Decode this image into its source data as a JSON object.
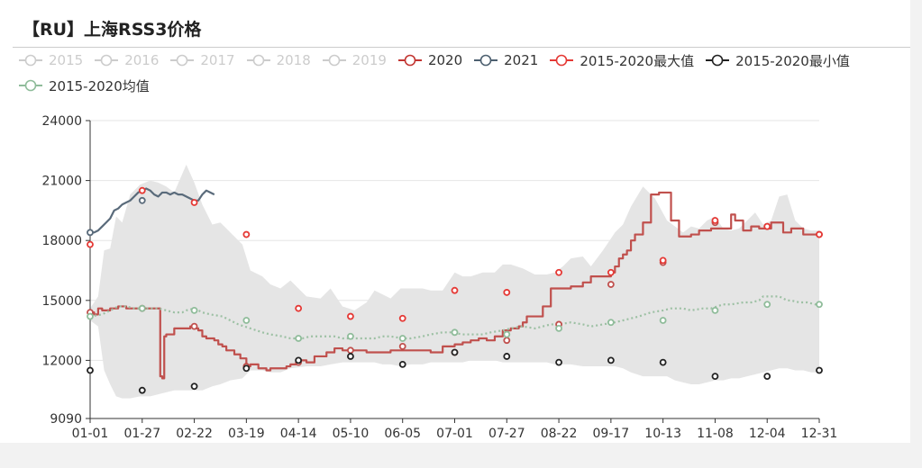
{
  "title": "【RU】上海RSS3价格",
  "legend": [
    {
      "label": "2015",
      "color": "#cccccc",
      "active": false
    },
    {
      "label": "2016",
      "color": "#cccccc",
      "active": false
    },
    {
      "label": "2017",
      "color": "#cccccc",
      "active": false
    },
    {
      "label": "2018",
      "color": "#cccccc",
      "active": false
    },
    {
      "label": "2019",
      "color": "#cccccc",
      "active": false
    },
    {
      "label": "2020",
      "color": "#c23531",
      "active": true
    },
    {
      "label": "2021",
      "color": "#4d6070",
      "active": true
    },
    {
      "label": "2015-2020最大值",
      "color": "#e53935",
      "active": true
    },
    {
      "label": "2015-2020最小值",
      "color": "#222222",
      "active": true
    },
    {
      "label": "2015-2020均值",
      "color": "#8fbc9a",
      "active": true
    }
  ],
  "chart_data": {
    "type": "line",
    "x_ticks": [
      "01-01",
      "01-27",
      "02-22",
      "03-19",
      "04-14",
      "05-10",
      "06-05",
      "07-01",
      "07-27",
      "08-22",
      "09-17",
      "10-13",
      "11-08",
      "12-04",
      "12-31"
    ],
    "y_ticks": [
      9090,
      12000,
      15000,
      18000,
      21000,
      24000
    ],
    "ylim": [
      9090,
      24000
    ],
    "grid": true,
    "legend_position": "top",
    "band_color": "#e5e5e5",
    "band": {
      "x": [
        0,
        4,
        7,
        10,
        13,
        16,
        20,
        25,
        30,
        34,
        38,
        42,
        48,
        52,
        56,
        61,
        65,
        70,
        76,
        80,
        86,
        90,
        95,
        100,
        108,
        115,
        120,
        126,
        132,
        138,
        142,
        146,
        150,
        155,
        160,
        166,
        170,
        176,
        182,
        186,
        190,
        196,
        202,
        206,
        210,
        216,
        222,
        228,
        232,
        236,
        240,
        246,
        250,
        256,
        262,
        266,
        270,
        276,
        282,
        288,
        292,
        296,
        300,
        304,
        308,
        312,
        316,
        320,
        324,
        328,
        332,
        336,
        340,
        344,
        348,
        352,
        356,
        360,
        364
      ],
      "upper": [
        14600,
        15200,
        17500,
        17600,
        19200,
        18900,
        20300,
        20800,
        21000,
        20900,
        20700,
        20400,
        21800,
        20900,
        19800,
        18800,
        18900,
        18400,
        17800,
        16500,
        16200,
        15800,
        15600,
        16000,
        15200,
        15100,
        15600,
        14700,
        14500,
        14900,
        15500,
        15300,
        15100,
        15600,
        15600,
        15600,
        15500,
        15500,
        16400,
        16200,
        16200,
        16400,
        16400,
        16800,
        16800,
        16600,
        16300,
        16300,
        16400,
        16700,
        17100,
        17200,
        16700,
        17500,
        18400,
        18800,
        19700,
        20700,
        20100,
        19000,
        18700,
        18400,
        18700,
        18600,
        19000,
        19200,
        18600,
        18500,
        18600,
        19000,
        19400,
        18800,
        19000,
        20200,
        20300,
        19000,
        18600,
        18500,
        18500
      ],
      "lower": [
        14000,
        13700,
        11500,
        10800,
        10200,
        10100,
        10100,
        10200,
        10200,
        10300,
        10400,
        10500,
        10500,
        10500,
        10500,
        10700,
        10800,
        11000,
        11100,
        11500,
        11500,
        11400,
        11400,
        11600,
        11700,
        11700,
        11800,
        11900,
        11900,
        11900,
        11900,
        11800,
        11800,
        11700,
        11800,
        11800,
        11900,
        11900,
        11900,
        11900,
        12000,
        12000,
        12000,
        11900,
        11900,
        11900,
        11900,
        11900,
        11800,
        11800,
        11800,
        11700,
        11700,
        11700,
        11700,
        11600,
        11400,
        11200,
        11200,
        11200,
        11000,
        10900,
        10800,
        10800,
        10900,
        11000,
        11000,
        11100,
        11100,
        11200,
        11300,
        11400,
        11500,
        11600,
        11600,
        11500,
        11500,
        11400,
        11400
      ]
    },
    "series": [
      {
        "name": "2020",
        "color": "#c0504d",
        "x": [
          0,
          2,
          4,
          6,
          10,
          14,
          18,
          20,
          24,
          28,
          32,
          34,
          35,
          36,
          37,
          38,
          42,
          46,
          50,
          52,
          54,
          56,
          58,
          62,
          64,
          66,
          68,
          72,
          75,
          78,
          80,
          84,
          88,
          90,
          94,
          98,
          100,
          104,
          108,
          112,
          118,
          122,
          126,
          130,
          134,
          138,
          144,
          150,
          156,
          160,
          166,
          170,
          176,
          182,
          186,
          190,
          194,
          198,
          202,
          206,
          210,
          214,
          216,
          218,
          226,
          230,
          234,
          240,
          246,
          250,
          254,
          258,
          260,
          262,
          264,
          266,
          268,
          270,
          272,
          276,
          280,
          284,
          290,
          294,
          300,
          304,
          310,
          314,
          320,
          322,
          326,
          330,
          334,
          336,
          340,
          346,
          350,
          354,
          356,
          360,
          364
        ],
        "y": [
          14400,
          14300,
          14600,
          14500,
          14600,
          14700,
          14600,
          14600,
          14600,
          14600,
          14600,
          14600,
          11200,
          11100,
          13200,
          13300,
          13600,
          13600,
          13700,
          13600,
          13500,
          13200,
          13100,
          13000,
          12800,
          12700,
          12500,
          12300,
          12100,
          11700,
          11800,
          11600,
          11500,
          11600,
          11600,
          11700,
          11800,
          12000,
          11900,
          12200,
          12400,
          12600,
          12500,
          12500,
          12500,
          12400,
          12400,
          12500,
          12500,
          12500,
          12500,
          12400,
          12700,
          12800,
          12900,
          13000,
          13100,
          13000,
          13200,
          13500,
          13600,
          13700,
          13900,
          14200,
          14700,
          15600,
          15600,
          15700,
          15900,
          16200,
          16200,
          16200,
          16400,
          16700,
          17100,
          17300,
          17500,
          18000,
          18300,
          18900,
          20300,
          20400,
          19000,
          18200,
          18300,
          18500,
          18600,
          18600,
          19300,
          19000,
          18500,
          18700,
          18600,
          18600,
          18900,
          18400,
          18600,
          18600,
          18300,
          18300,
          18300
        ]
      },
      {
        "name": "2021",
        "color": "#5a6b7b",
        "x": [
          0,
          2,
          4,
          6,
          8,
          10,
          12,
          14,
          16,
          18,
          20,
          22,
          24,
          26,
          28,
          30,
          32,
          34,
          36,
          38,
          40,
          42,
          44,
          46,
          48,
          50,
          52,
          54,
          56,
          58,
          60,
          62
        ],
        "y": [
          18400,
          18400,
          18500,
          18700,
          18900,
          19100,
          19500,
          19600,
          19800,
          19900,
          20000,
          20200,
          20400,
          20500,
          20600,
          20500,
          20300,
          20200,
          20400,
          20400,
          20300,
          20400,
          20300,
          20300,
          20200,
          20100,
          20000,
          20000,
          20300,
          20500,
          20400,
          20300
        ]
      },
      {
        "name": "2015-2020均值",
        "color": "#9cc0a3",
        "dashed": true,
        "x": [
          0,
          6,
          10,
          14,
          18,
          22,
          26,
          30,
          34,
          38,
          42,
          46,
          48,
          52,
          56,
          60,
          66,
          70,
          74,
          80,
          86,
          90,
          96,
          100,
          106,
          110,
          114,
          118,
          122,
          126,
          130,
          134,
          138,
          142,
          146,
          150,
          156,
          160,
          166,
          170,
          176,
          180,
          186,
          190,
          196,
          200,
          206,
          210,
          216,
          222,
          226,
          230,
          234,
          240,
          246,
          250,
          256,
          262,
          266,
          270,
          274,
          280,
          286,
          290,
          296,
          300,
          306,
          310,
          316,
          320,
          326,
          330,
          334,
          336,
          340,
          344,
          348,
          350,
          354,
          358,
          362,
          364
        ],
        "y": [
          14200,
          14300,
          14500,
          14700,
          14700,
          14600,
          14600,
          14600,
          14600,
          14500,
          14400,
          14400,
          14500,
          14600,
          14400,
          14300,
          14200,
          14000,
          13800,
          13600,
          13400,
          13300,
          13200,
          13100,
          13100,
          13200,
          13200,
          13200,
          13200,
          13100,
          13100,
          13100,
          13100,
          13100,
          13200,
          13200,
          13100,
          13100,
          13200,
          13300,
          13400,
          13400,
          13300,
          13300,
          13300,
          13400,
          13500,
          13600,
          13700,
          13600,
          13700,
          13800,
          13800,
          13900,
          13800,
          13700,
          13800,
          13900,
          14000,
          14100,
          14200,
          14400,
          14500,
          14600,
          14600,
          14500,
          14600,
          14600,
          14800,
          14800,
          14900,
          14900,
          15000,
          15200,
          15200,
          15200,
          15000,
          15000,
          14900,
          14900,
          14800,
          14800
        ]
      }
    ],
    "markers": {
      "max": {
        "color": "#e53935",
        "x": [
          0,
          26,
          52,
          78,
          104,
          130,
          156,
          182,
          208,
          234,
          260,
          286,
          312,
          338,
          364
        ],
        "y": [
          17800,
          20500,
          19900,
          18300,
          14600,
          14200,
          14100,
          15500,
          15400,
          16400,
          16400,
          17000,
          19000,
          18700,
          18300
        ]
      },
      "min": {
        "color": "#222222",
        "x": [
          0,
          26,
          52,
          78,
          104,
          130,
          156,
          182,
          208,
          234,
          260,
          286,
          312,
          338,
          364
        ],
        "y": [
          11500,
          10500,
          10700,
          11600,
          12000,
          12200,
          11800,
          12400,
          12200,
          11900,
          12000,
          11900,
          11200,
          11200,
          11500
        ]
      },
      "mean": {
        "color": "#8fbc9a",
        "x": [
          0,
          26,
          52,
          78,
          104,
          130,
          156,
          182,
          208,
          234,
          260,
          286,
          312,
          338,
          364
        ],
        "y": [
          14200,
          14600,
          14500,
          14000,
          13100,
          13200,
          13100,
          13400,
          13300,
          13600,
          13900,
          14000,
          14500,
          14800,
          14800
        ]
      },
      "2020": {
        "color": "#c0504d",
        "x": [
          0,
          26,
          52,
          78,
          104,
          130,
          156,
          182,
          208,
          234,
          260,
          286,
          312,
          338,
          364
        ],
        "y": [
          14400,
          14600,
          13700,
          11700,
          11900,
          12500,
          12700,
          12400,
          13000,
          13800,
          15800,
          16900,
          18900,
          18700,
          18300
        ]
      },
      "2021": {
        "color": "#5a6b7b",
        "x": [
          0,
          26
        ],
        "y": [
          18400,
          20000
        ]
      }
    }
  }
}
